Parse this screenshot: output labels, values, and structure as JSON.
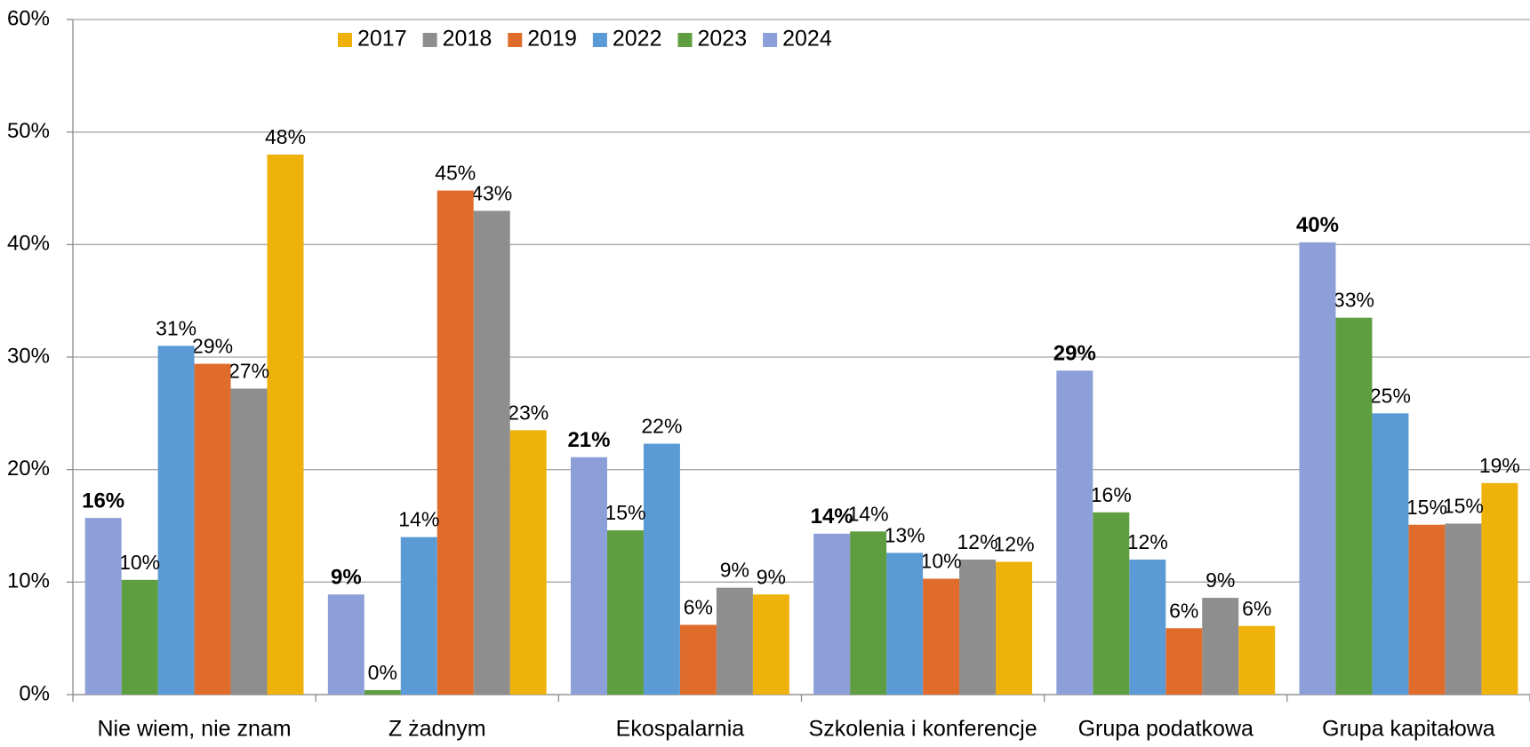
{
  "chart_data": {
    "type": "bar",
    "categories": [
      "Nie wiem, nie znam",
      "Z żadnym",
      "Ekospalarnia",
      "Szkolenia i konferencje",
      "Grupa podatkowa",
      "Grupa kapitałowa"
    ],
    "series": [
      {
        "name": "2017",
        "color": "#efb20a",
        "values": [
          48,
          23.5,
          8.9,
          11.8,
          6.1,
          18.8
        ],
        "value_labels": [
          "48%",
          "23%",
          "9%",
          "12%",
          "6%",
          "19%"
        ]
      },
      {
        "name": "2018",
        "color": "#8e8e8e",
        "values": [
          27.2,
          43,
          9.5,
          12,
          8.6,
          15.2
        ],
        "value_labels": [
          "27%",
          "43%",
          "9%",
          "12%",
          "9%",
          "15%"
        ]
      },
      {
        "name": "2019",
        "color": "#e06c2c",
        "values": [
          29.4,
          44.8,
          6.2,
          10.3,
          5.9,
          15.1
        ],
        "value_labels": [
          "29%",
          "45%",
          "6%",
          "10%",
          "6%",
          "15%"
        ]
      },
      {
        "name": "2022",
        "color": "#5b9bd5",
        "values": [
          31,
          14,
          22.3,
          12.6,
          12,
          25
        ],
        "value_labels": [
          "31%",
          "14%",
          "22%",
          "13%",
          "12%",
          "25%"
        ]
      },
      {
        "name": "2023",
        "color": "#5f9e40",
        "values": [
          10.2,
          0.4,
          14.6,
          14.5,
          16.2,
          33.5
        ],
        "value_labels": [
          "10%",
          "0%",
          "15%",
          "14%",
          "16%",
          "33%"
        ]
      },
      {
        "name": "2024",
        "color": "#8d9fd8",
        "values": [
          15.7,
          8.9,
          21.1,
          14.3,
          28.8,
          40.2
        ],
        "value_labels": [
          "16%",
          "9%",
          "21%",
          "14%",
          "29%",
          "40%"
        ]
      }
    ],
    "ylim": [
      0,
      60
    ],
    "yticks": [
      {
        "value": 0,
        "label": "0%"
      },
      {
        "value": 10,
        "label": "10%"
      },
      {
        "value": 20,
        "label": "20%"
      },
      {
        "value": 30,
        "label": "30%"
      },
      {
        "value": 40,
        "label": "40%"
      },
      {
        "value": 50,
        "label": "50%"
      },
      {
        "value": 60,
        "label": "60%"
      }
    ],
    "grid": true,
    "legend": "top"
  }
}
